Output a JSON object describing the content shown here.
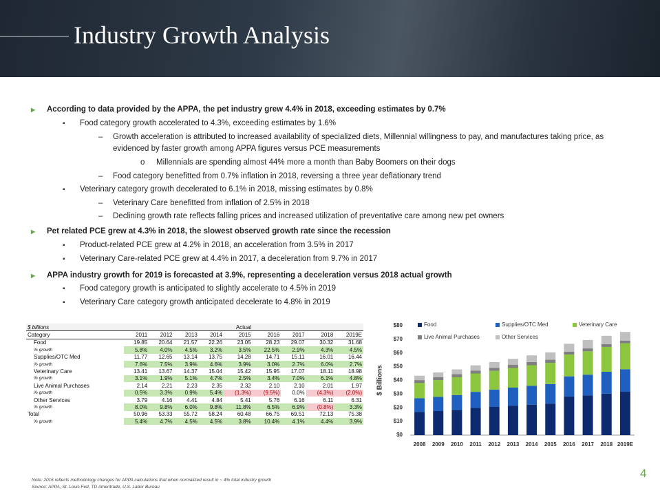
{
  "header": {
    "title": "Industry Growth Analysis"
  },
  "bullets": [
    {
      "text": "According to data provided by the APPA, the pet industry grew 4.4% in 2018, exceeding estimates by 0.7%",
      "items": [
        {
          "text": "Food category growth accelerated to 4.3%, exceeding estimates by 1.6%",
          "items": [
            {
              "text": "Growth acceleration is attributed to increased availability of specialized diets, Millennial willingness to pay, and manufactures taking price, as evidenced by faster growth among APPA figures versus PCE measurements",
              "items": [
                {
                  "text": "Millennials are spending almost 44% more a month than Baby Boomers on their dogs"
                }
              ]
            },
            {
              "text": "Food category benefitted from 0.7% inflation in 2018, reversing a three year deflationary trend"
            }
          ]
        },
        {
          "text": "Veterinary category growth decelerated to 6.1% in 2018, missing estimates by 0.8%",
          "items": [
            {
              "text": "Veterinary Care benefitted from inflation of 2.5% in 2018"
            },
            {
              "text": "Declining growth rate reflects falling prices and increased utilization of preventative care among new pet owners"
            }
          ]
        }
      ]
    },
    {
      "text": "Pet related PCE grew at 4.3% in 2018, the slowest observed growth rate since the recession",
      "items": [
        {
          "text": "Product-related PCE grew at 4.2% in 2018, an acceleration from 3.5% in 2017"
        },
        {
          "text": "Veterinary Care-related PCE grew at 4.4% in 2017, a deceleration from 9.7% in 2017"
        }
      ]
    },
    {
      "text": "APPA industry growth for 2019 is forecasted at 3.9%, representing a deceleration versus 2018 actual growth",
      "items": [
        {
          "text": "Food category growth is anticipated to slightly accelerate to 4.5% in 2019"
        },
        {
          "text": "Veterinary Care category growth anticipated decelerate to 4.8% in 2019"
        }
      ]
    }
  ],
  "table": {
    "unit": "$ billions",
    "group": "Actual",
    "columns": [
      "Category",
      "2011",
      "2012",
      "2013",
      "2014",
      "2015",
      "2016",
      "2017",
      "2018",
      "2019E"
    ],
    "rows": [
      [
        "Food",
        "19.85",
        "20.64",
        "21.57",
        "22.26",
        "23.05",
        "28.23",
        "29.07",
        "30.32",
        "31.68"
      ],
      [
        "% growth",
        "5.8%",
        "4.0%",
        "4.5%",
        "3.2%",
        "3.5%",
        "22.5%",
        "2.9%",
        "4.3%",
        "4.5%"
      ],
      [
        "Supplies/OTC Med",
        "11.77",
        "12.65",
        "13.14",
        "13.75",
        "14.28",
        "14.71",
        "15.11",
        "16.01",
        "16.44"
      ],
      [
        "% growth",
        "7.6%",
        "7.5%",
        "3.9%",
        "4.6%",
        "3.9%",
        "3.0%",
        "2.7%",
        "6.0%",
        "2.7%"
      ],
      [
        "Veterinary Care",
        "13.41",
        "13.67",
        "14.37",
        "15.04",
        "15.42",
        "15.95",
        "17.07",
        "18.11",
        "18.98"
      ],
      [
        "% growth",
        "3.1%",
        "1.9%",
        "5.1%",
        "4.7%",
        "2.5%",
        "3.4%",
        "7.0%",
        "6.1%",
        "4.8%"
      ],
      [
        "Live Animal Purchases",
        "2.14",
        "2.21",
        "2.23",
        "2.35",
        "2.32",
        "2.10",
        "2.10",
        "2.01",
        "1.97"
      ],
      [
        "% growth",
        "0.5%",
        "3.3%",
        "0.9%",
        "5.4%",
        "(1.3%)",
        "(9.5%)",
        "0.0%",
        "(4.3%)",
        "(2.0%)"
      ],
      [
        "Other Services",
        "3.79",
        "4.16",
        "4.41",
        "4.84",
        "5.41",
        "5.76",
        "6.16",
        "6.11",
        "6.31"
      ],
      [
        "% growth",
        "8.0%",
        "9.8%",
        "6.0%",
        "9.8%",
        "11.8%",
        "6.5%",
        "6.9%",
        "(0.8%)",
        "3.3%"
      ],
      [
        "Total",
        "50.96",
        "53.33",
        "55.72",
        "58.24",
        "60.48",
        "66.75",
        "69.51",
        "72.13",
        "75.38"
      ],
      [
        "% growth",
        "5.4%",
        "4.7%",
        "4.5%",
        "4.5%",
        "3.8%",
        "10.4%",
        "4.1%",
        "4.4%",
        "3.9%"
      ]
    ]
  },
  "chart_data": {
    "type": "stacked_bar",
    "y_label": "$ Billions",
    "categories": [
      "2008",
      "2009",
      "2010",
      "2011",
      "2012",
      "2013",
      "2014",
      "2015",
      "2016",
      "2017",
      "2018",
      "2019E"
    ],
    "series": [
      {
        "name": "Food",
        "color": "#0e2a6e",
        "values": [
          16.9,
          17.6,
          18.3,
          19.85,
          20.64,
          21.57,
          22.26,
          23.05,
          28.23,
          29.07,
          30.32,
          31.68
        ]
      },
      {
        "name": "Supplies/OTC Med",
        "color": "#1f5fc0",
        "values": [
          10.1,
          10.4,
          11.0,
          11.77,
          12.65,
          13.14,
          13.75,
          14.28,
          14.71,
          15.11,
          16.01,
          16.44
        ]
      },
      {
        "name": "Veterinary Care",
        "color": "#8cc63f",
        "values": [
          11.1,
          12.2,
          13.0,
          13.41,
          13.67,
          14.37,
          15.04,
          15.42,
          15.95,
          17.07,
          18.11,
          18.98
        ]
      },
      {
        "name": "Live Animal Purchases",
        "color": "#7f7f7f",
        "values": [
          2.1,
          2.2,
          2.2,
          2.14,
          2.21,
          2.23,
          2.35,
          2.32,
          2.1,
          2.1,
          2.01,
          1.97
        ]
      },
      {
        "name": "Other Services",
        "color": "#bfbfbf",
        "values": [
          3.2,
          3.4,
          3.5,
          3.79,
          4.16,
          4.41,
          4.84,
          5.41,
          5.76,
          6.16,
          6.11,
          6.31
        ]
      }
    ],
    "ylim": [
      0,
      80
    ],
    "yticks": [
      {
        "value": 0,
        "label": "$0"
      },
      {
        "value": 10,
        "label": "$10"
      },
      {
        "value": 20,
        "label": "$20"
      },
      {
        "value": 30,
        "label": "$30"
      },
      {
        "value": 40,
        "label": "$40"
      },
      {
        "value": 50,
        "label": "$50"
      },
      {
        "value": 60,
        "label": "$60"
      },
      {
        "value": 70,
        "label": "$70"
      },
      {
        "value": 80,
        "label": "$80"
      }
    ],
    "grid": false
  },
  "footnotes": [
    "Note: 2016 reflects methodology changes for APPA calculations that when normalized result in ~ 4% total industry growth",
    "Source: APPA, St. Louis Fed, TD Ameritrade, U.S. Labor Bureau"
  ],
  "page_number": "4"
}
